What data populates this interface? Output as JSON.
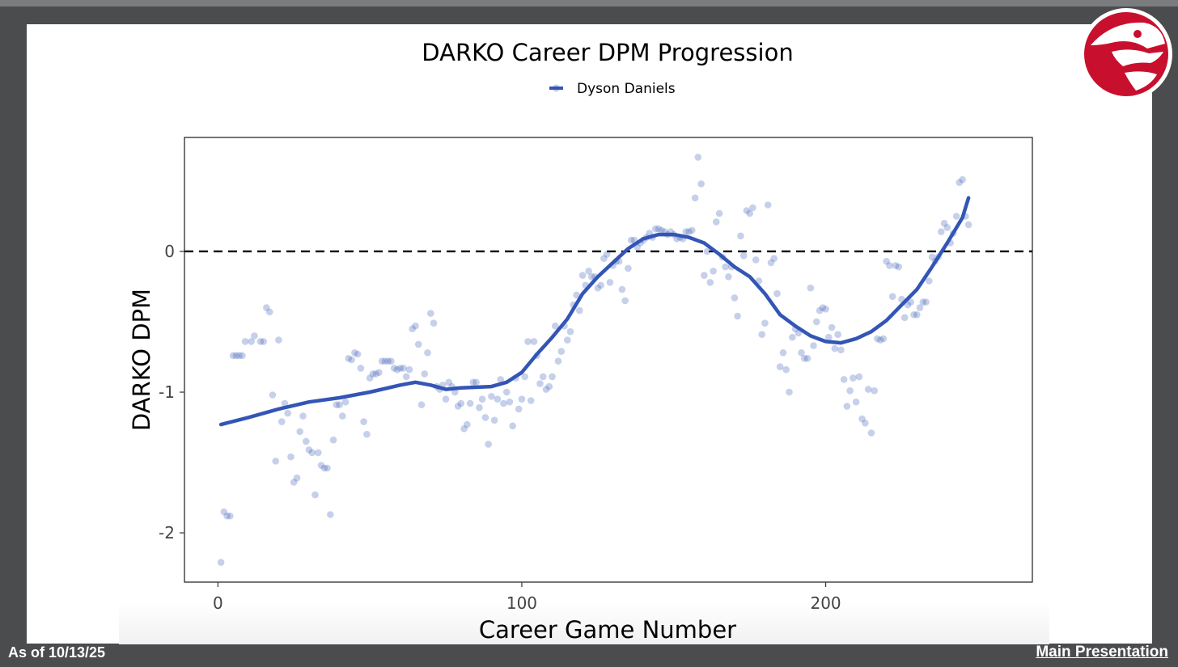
{
  "footer": {
    "date_label": "As of 10/13/25",
    "link_label": "Main Presentation"
  },
  "logo": {
    "icon": "hawk-head-logo-icon",
    "color": "#c8102e"
  },
  "chart_data": {
    "type": "scatter",
    "title": "DARKO Career DPM Progression",
    "xlabel": "Career Game Number",
    "ylabel": "DARKO DPM",
    "xlim": [
      -11,
      268
    ],
    "ylim": [
      -2.35,
      0.81
    ],
    "xticks": [
      0,
      100,
      200
    ],
    "yticks": [
      -2,
      -1,
      0
    ],
    "xtick_labels": [
      "0",
      "100",
      "200"
    ],
    "ytick_labels": [
      "-2",
      "-1",
      "0"
    ],
    "grid": false,
    "legend_position": "top-center",
    "reference_line": {
      "y": 0,
      "style": "dashed",
      "color": "#000000"
    },
    "series": [
      {
        "name": "Dyson Daniels",
        "color": "#3355b5",
        "points": [
          [
            1,
            -2.21
          ],
          [
            2,
            -1.85
          ],
          [
            3,
            -1.88
          ],
          [
            4,
            -1.88
          ],
          [
            5,
            -0.74
          ],
          [
            6,
            -0.74
          ],
          [
            7,
            -0.74
          ],
          [
            8,
            -0.74
          ],
          [
            9,
            -0.64
          ],
          [
            11,
            -0.64
          ],
          [
            12,
            -0.6
          ],
          [
            14,
            -0.64
          ],
          [
            15,
            -0.64
          ],
          [
            16,
            -0.4
          ],
          [
            17,
            -0.43
          ],
          [
            18,
            -1.02
          ],
          [
            19,
            -1.49
          ],
          [
            20,
            -0.63
          ],
          [
            21,
            -1.21
          ],
          [
            22,
            -1.08
          ],
          [
            23,
            -1.15
          ],
          [
            24,
            -1.46
          ],
          [
            25,
            -1.64
          ],
          [
            26,
            -1.61
          ],
          [
            27,
            -1.28
          ],
          [
            28,
            -1.17
          ],
          [
            29,
            -1.35
          ],
          [
            30,
            -1.41
          ],
          [
            31,
            -1.43
          ],
          [
            32,
            -1.73
          ],
          [
            33,
            -1.43
          ],
          [
            34,
            -1.52
          ],
          [
            35,
            -1.54
          ],
          [
            36,
            -1.54
          ],
          [
            37,
            -1.87
          ],
          [
            38,
            -1.34
          ],
          [
            39,
            -1.09
          ],
          [
            40,
            -1.09
          ],
          [
            41,
            -1.17
          ],
          [
            42,
            -1.07
          ],
          [
            43,
            -0.76
          ],
          [
            44,
            -0.77
          ],
          [
            45,
            -0.72
          ],
          [
            46,
            -0.73
          ],
          [
            47,
            -0.83
          ],
          [
            48,
            -1.21
          ],
          [
            49,
            -1.3
          ],
          [
            50,
            -0.9
          ],
          [
            51,
            -0.87
          ],
          [
            52,
            -0.87
          ],
          [
            53,
            -0.86
          ],
          [
            54,
            -0.78
          ],
          [
            55,
            -0.78
          ],
          [
            56,
            -0.78
          ],
          [
            57,
            -0.78
          ],
          [
            58,
            -0.83
          ],
          [
            59,
            -0.84
          ],
          [
            60,
            -0.83
          ],
          [
            61,
            -0.83
          ],
          [
            62,
            -0.89
          ],
          [
            63,
            -0.84
          ],
          [
            64,
            -0.55
          ],
          [
            65,
            -0.53
          ],
          [
            66,
            -0.66
          ],
          [
            67,
            -1.09
          ],
          [
            68,
            -0.87
          ],
          [
            69,
            -0.72
          ],
          [
            70,
            -0.44
          ],
          [
            71,
            -0.51
          ],
          [
            72,
            -0.96
          ],
          [
            73,
            -0.98
          ],
          [
            74,
            -0.95
          ],
          [
            75,
            -1.05
          ],
          [
            76,
            -0.93
          ],
          [
            77,
            -0.96
          ],
          [
            78,
            -1.0
          ],
          [
            79,
            -1.1
          ],
          [
            80,
            -1.08
          ],
          [
            81,
            -1.26
          ],
          [
            82,
            -1.23
          ],
          [
            83,
            -1.08
          ],
          [
            84,
            -0.93
          ],
          [
            85,
            -0.93
          ],
          [
            86,
            -1.11
          ],
          [
            87,
            -1.05
          ],
          [
            88,
            -1.18
          ],
          [
            89,
            -1.37
          ],
          [
            90,
            -1.03
          ],
          [
            91,
            -1.2
          ],
          [
            92,
            -1.05
          ],
          [
            93,
            -0.91
          ],
          [
            94,
            -1.08
          ],
          [
            95,
            -1.0
          ],
          [
            96,
            -1.07
          ],
          [
            97,
            -1.24
          ],
          [
            98,
            -0.9
          ],
          [
            99,
            -1.12
          ],
          [
            100,
            -1.05
          ],
          [
            101,
            -0.89
          ],
          [
            102,
            -0.64
          ],
          [
            103,
            -1.06
          ],
          [
            104,
            -0.64
          ],
          [
            105,
            -0.74
          ],
          [
            106,
            -0.94
          ],
          [
            107,
            -0.89
          ],
          [
            108,
            -0.98
          ],
          [
            109,
            -0.96
          ],
          [
            110,
            -0.89
          ],
          [
            111,
            -0.53
          ],
          [
            112,
            -0.78
          ],
          [
            113,
            -0.71
          ],
          [
            114,
            -0.53
          ],
          [
            115,
            -0.63
          ],
          [
            116,
            -0.57
          ],
          [
            117,
            -0.38
          ],
          [
            118,
            -0.31
          ],
          [
            119,
            -0.42
          ],
          [
            120,
            -0.17
          ],
          [
            121,
            -0.24
          ],
          [
            122,
            -0.14
          ],
          [
            123,
            -0.18
          ],
          [
            124,
            -0.18
          ],
          [
            125,
            -0.26
          ],
          [
            126,
            -0.24
          ],
          [
            127,
            -0.05
          ],
          [
            128,
            -0.02
          ],
          [
            129,
            -0.22
          ],
          [
            130,
            -0.1
          ],
          [
            131,
            -0.07
          ],
          [
            132,
            -0.07
          ],
          [
            133,
            -0.27
          ],
          [
            134,
            -0.35
          ],
          [
            135,
            -0.12
          ],
          [
            136,
            0.08
          ],
          [
            137,
            0.08
          ],
          [
            138,
            0.03
          ],
          [
            139,
            0.06
          ],
          [
            140,
            0.08
          ],
          [
            141,
            0.1
          ],
          [
            142,
            0.13
          ],
          [
            143,
            0.1
          ],
          [
            144,
            0.16
          ],
          [
            145,
            0.16
          ],
          [
            146,
            0.15
          ],
          [
            147,
            0.14
          ],
          [
            148,
            0.12
          ],
          [
            149,
            0.14
          ],
          [
            150,
            0.12
          ],
          [
            151,
            0.09
          ],
          [
            152,
            0.1
          ],
          [
            153,
            0.09
          ],
          [
            154,
            0.14
          ],
          [
            155,
            0.14
          ],
          [
            156,
            0.15
          ],
          [
            157,
            0.38
          ],
          [
            158,
            0.67
          ],
          [
            159,
            0.48
          ],
          [
            160,
            -0.17
          ],
          [
            161,
            0.0
          ],
          [
            162,
            -0.22
          ],
          [
            163,
            -0.14
          ],
          [
            164,
            0.21
          ],
          [
            165,
            0.27
          ],
          [
            166,
            -0.04
          ],
          [
            167,
            -0.11
          ],
          [
            168,
            -0.18
          ],
          [
            169,
            -0.11
          ],
          [
            170,
            -0.33
          ],
          [
            171,
            -0.46
          ],
          [
            172,
            0.11
          ],
          [
            173,
            -0.03
          ],
          [
            174,
            0.29
          ],
          [
            175,
            0.27
          ],
          [
            176,
            0.31
          ],
          [
            177,
            -0.06
          ],
          [
            178,
            -0.21
          ],
          [
            179,
            -0.59
          ],
          [
            180,
            -0.51
          ],
          [
            181,
            0.33
          ],
          [
            182,
            -0.08
          ],
          [
            183,
            -0.05
          ],
          [
            184,
            -0.3
          ],
          [
            185,
            -0.82
          ],
          [
            186,
            -0.72
          ],
          [
            187,
            -0.84
          ],
          [
            188,
            -1.0
          ],
          [
            189,
            -0.61
          ],
          [
            190,
            -0.55
          ],
          [
            191,
            -0.58
          ],
          [
            192,
            -0.72
          ],
          [
            193,
            -0.76
          ],
          [
            194,
            -0.76
          ],
          [
            195,
            -0.26
          ],
          [
            196,
            -0.67
          ],
          [
            197,
            -0.5
          ],
          [
            198,
            -0.42
          ],
          [
            199,
            -0.4
          ],
          [
            200,
            -0.41
          ],
          [
            201,
            -0.61
          ],
          [
            202,
            -0.54
          ],
          [
            203,
            -0.69
          ],
          [
            204,
            -0.59
          ],
          [
            205,
            -0.7
          ],
          [
            206,
            -0.91
          ],
          [
            207,
            -1.1
          ],
          [
            208,
            -0.99
          ],
          [
            209,
            -0.9
          ],
          [
            210,
            -1.07
          ],
          [
            211,
            -0.89
          ],
          [
            212,
            -1.19
          ],
          [
            213,
            -1.22
          ],
          [
            214,
            -0.98
          ],
          [
            215,
            -1.29
          ],
          [
            216,
            -0.99
          ],
          [
            217,
            -0.62
          ],
          [
            218,
            -0.63
          ],
          [
            219,
            -0.62
          ],
          [
            220,
            -0.07
          ],
          [
            221,
            -0.1
          ],
          [
            222,
            -0.32
          ],
          [
            223,
            -0.1
          ],
          [
            224,
            -0.11
          ],
          [
            225,
            -0.34
          ],
          [
            226,
            -0.47
          ],
          [
            227,
            -0.38
          ],
          [
            228,
            -0.36
          ],
          [
            229,
            -0.45
          ],
          [
            230,
            -0.45
          ],
          [
            231,
            -0.4
          ],
          [
            232,
            -0.36
          ],
          [
            233,
            -0.36
          ],
          [
            234,
            -0.21
          ],
          [
            235,
            -0.04
          ],
          [
            236,
            -0.07
          ],
          [
            237,
            -0.04
          ],
          [
            238,
            0.14
          ],
          [
            239,
            0.2
          ],
          [
            240,
            0.17
          ],
          [
            241,
            0.06
          ],
          [
            242,
            0.13
          ],
          [
            243,
            0.25
          ],
          [
            244,
            0.49
          ],
          [
            245,
            0.51
          ],
          [
            246,
            0.25
          ],
          [
            247,
            0.19
          ]
        ],
        "trend": [
          [
            1,
            -1.23
          ],
          [
            10,
            -1.18
          ],
          [
            20,
            -1.12
          ],
          [
            30,
            -1.07
          ],
          [
            40,
            -1.04
          ],
          [
            50,
            -1.0
          ],
          [
            60,
            -0.95
          ],
          [
            65,
            -0.93
          ],
          [
            70,
            -0.95
          ],
          [
            75,
            -0.98
          ],
          [
            80,
            -0.97
          ],
          [
            90,
            -0.96
          ],
          [
            95,
            -0.93
          ],
          [
            100,
            -0.86
          ],
          [
            105,
            -0.73
          ],
          [
            110,
            -0.61
          ],
          [
            115,
            -0.48
          ],
          [
            120,
            -0.3
          ],
          [
            125,
            -0.18
          ],
          [
            130,
            -0.08
          ],
          [
            135,
            0.02
          ],
          [
            140,
            0.09
          ],
          [
            145,
            0.12
          ],
          [
            150,
            0.12
          ],
          [
            155,
            0.1
          ],
          [
            160,
            0.06
          ],
          [
            165,
            -0.02
          ],
          [
            170,
            -0.11
          ],
          [
            175,
            -0.18
          ],
          [
            180,
            -0.3
          ],
          [
            185,
            -0.45
          ],
          [
            190,
            -0.53
          ],
          [
            195,
            -0.6
          ],
          [
            200,
            -0.64
          ],
          [
            205,
            -0.65
          ],
          [
            210,
            -0.62
          ],
          [
            215,
            -0.57
          ],
          [
            220,
            -0.49
          ],
          [
            225,
            -0.38
          ],
          [
            230,
            -0.27
          ],
          [
            235,
            -0.11
          ],
          [
            240,
            0.06
          ],
          [
            245,
            0.24
          ],
          [
            247,
            0.38
          ]
        ]
      }
    ]
  }
}
